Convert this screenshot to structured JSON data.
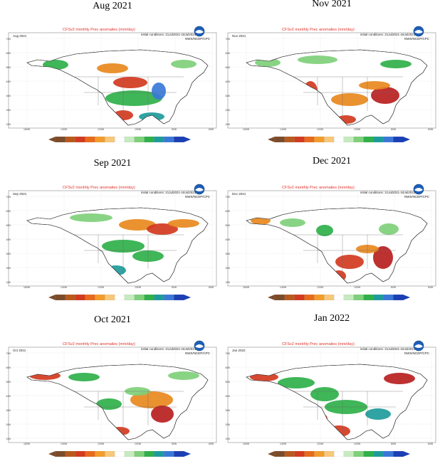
{
  "panels": [
    {
      "title": "Aug 2021",
      "month_label": "Aug 2021",
      "scheme": "aug"
    },
    {
      "title": "Nov 2021",
      "month_label": "Nov 2021",
      "scheme": "nov"
    },
    {
      "title": "Sep 2021",
      "month_label": "Sep 2021",
      "scheme": "sep"
    },
    {
      "title": "Dec 2021",
      "month_label": "Dec 2021",
      "scheme": "dec"
    },
    {
      "title": "Oct 2021",
      "month_label": "Oct 2021",
      "scheme": "oct"
    },
    {
      "title": "Jan 2022",
      "month_label": "Jan 2022",
      "scheme": "jan"
    }
  ],
  "map_header": "CFSv2 monthly Prec anomalies (mm/day)",
  "map_subheader": "initial conditions: 21Jul2021-18Jul2021",
  "agency_label": "NWS/NCEP/CPC",
  "lon_ticks": [
    "160W",
    "140W",
    "120W",
    "100W",
    "80W",
    "60W"
  ],
  "lat_ticks": [
    "70N",
    "60N",
    "50N",
    "40N",
    "30N",
    "20N",
    "10N"
  ],
  "colorbar": {
    "colors": [
      "#7b4b2a",
      "#b85a1d",
      "#d33a1f",
      "#e86a1c",
      "#f39c2b",
      "#f7c87a",
      "#ffffff",
      "#c7ebc0",
      "#7fd07a",
      "#2fb04a",
      "#1e9b9b",
      "#3a78d8",
      "#1b3fb5"
    ]
  },
  "colors": {
    "wet_light": "#7fd07a",
    "wet": "#2fb04a",
    "wet_dark": "#1e9b9b",
    "wet_blue": "#3a78d8",
    "dry_light": "#f7c87a",
    "dry": "#e8891e",
    "dry_dark": "#d33a1f",
    "dry_deep": "#b81f1f"
  }
}
